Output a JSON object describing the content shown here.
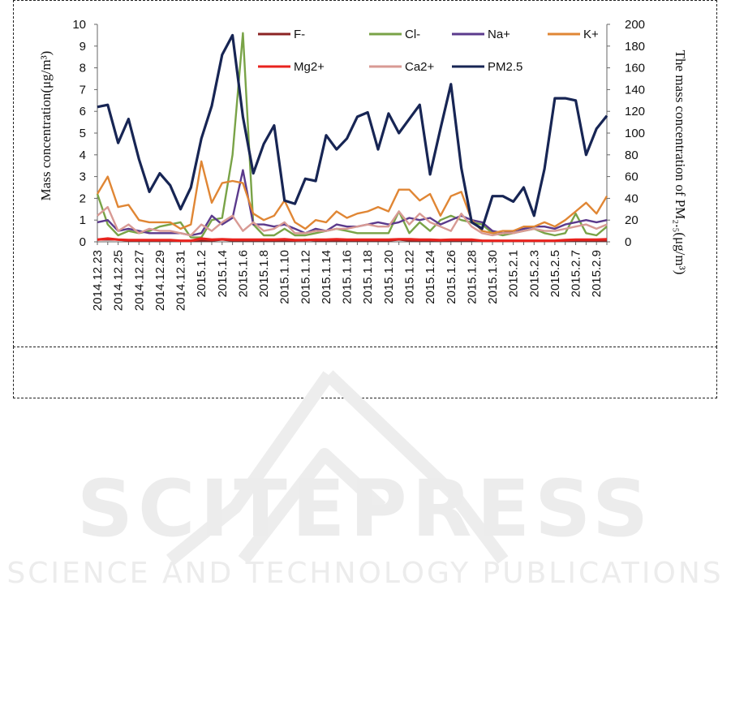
{
  "chart_data": {
    "type": "line",
    "ylabel_left": "Mass concentration(μg/m³)",
    "ylabel_right": "The mass concentration of PM₂.₅(μg/m³)",
    "ylim_left": [
      0,
      10
    ],
    "ylim_right": [
      0,
      200
    ],
    "yticks_left": [
      "0",
      "1",
      "2",
      "3",
      "4",
      "5",
      "6",
      "7",
      "8",
      "9",
      "10"
    ],
    "yticks_right": [
      "0",
      "20",
      "40",
      "60",
      "80",
      "100",
      "120",
      "140",
      "160",
      "180",
      "200"
    ],
    "x_tick_labels": [
      "2014.12.23",
      "2014.12.25",
      "2014.12.27",
      "2014.12.29",
      "2014.12.31",
      "2015.1.2",
      "2015.1.4",
      "2015.1.6",
      "2015.1.8",
      "2015.1.10",
      "2015.1.12",
      "2015.1.14",
      "2015.1.16",
      "2015.1.18",
      "2015.1.20",
      "2015.1.22",
      "2015.1.24",
      "2015.1.26",
      "2015.1.28",
      "2015.1.30",
      "2015.2.1",
      "2015.2.3",
      "2015.2.5",
      "2015.2.7",
      "2015.2.9"
    ],
    "x_count": 50,
    "legend_position": "top",
    "series": [
      {
        "name": "F-",
        "color": "#8b2323",
        "axis": "left",
        "values": [
          0.1,
          0.1,
          0.1,
          0.05,
          0.05,
          0.05,
          0.05,
          0.05,
          0.05,
          0.05,
          0.05,
          0.05,
          0.1,
          0.05,
          0.05,
          0.05,
          0.05,
          0.05,
          0.05,
          0.05,
          0.1,
          0.05,
          0.05,
          0.05,
          0.05,
          0.05,
          0.05,
          0.05,
          0.05,
          0.1,
          0.05,
          0.05,
          0.05,
          0.05,
          0.05,
          0.05,
          0.05,
          0.05,
          0.05,
          0.05,
          0.05,
          0.05,
          0.05,
          0.05,
          0.05,
          0.05,
          0.05,
          0.05,
          0.05,
          0.05
        ]
      },
      {
        "name": "Cl-",
        "color": "#79a347",
        "axis": "left",
        "values": [
          2.2,
          0.8,
          0.3,
          0.5,
          0.4,
          0.5,
          0.7,
          0.8,
          0.9,
          0.2,
          0.2,
          1.0,
          1.1,
          4.0,
          9.6,
          0.8,
          0.3,
          0.3,
          0.6,
          0.3,
          0.3,
          0.4,
          0.5,
          0.6,
          0.5,
          0.4,
          0.4,
          0.4,
          0.4,
          1.4,
          0.4,
          0.9,
          0.5,
          1.0,
          1.2,
          1.0,
          0.9,
          0.8,
          0.4,
          0.3,
          0.4,
          0.5,
          0.6,
          0.4,
          0.3,
          0.4,
          1.3,
          0.4,
          0.3,
          0.7
        ]
      },
      {
        "name": "Na+",
        "color": "#5b3a8c",
        "axis": "left",
        "values": [
          0.9,
          1.0,
          0.5,
          0.6,
          0.5,
          0.4,
          0.4,
          0.4,
          0.4,
          0.3,
          0.4,
          1.2,
          0.8,
          1.1,
          3.3,
          0.8,
          0.8,
          0.7,
          0.8,
          0.6,
          0.4,
          0.6,
          0.5,
          0.8,
          0.7,
          0.7,
          0.8,
          0.9,
          0.8,
          0.9,
          1.1,
          1.0,
          1.1,
          0.8,
          1.0,
          1.2,
          1.0,
          0.9,
          0.5,
          0.4,
          0.5,
          0.6,
          0.7,
          0.7,
          0.6,
          0.8,
          0.9,
          1.0,
          0.9,
          1.0
        ]
      },
      {
        "name": "K+",
        "color": "#e08634",
        "axis": "left",
        "values": [
          2.2,
          3.0,
          1.6,
          1.7,
          1.0,
          0.9,
          0.9,
          0.9,
          0.6,
          0.8,
          3.7,
          1.8,
          2.7,
          2.8,
          2.7,
          1.3,
          1.0,
          1.2,
          1.9,
          0.9,
          0.6,
          1.0,
          0.9,
          1.4,
          1.1,
          1.3,
          1.4,
          1.6,
          1.4,
          2.4,
          2.4,
          1.9,
          2.2,
          1.2,
          2.1,
          2.3,
          1.0,
          0.5,
          0.4,
          0.5,
          0.5,
          0.7,
          0.7,
          0.9,
          0.7,
          1.0,
          1.4,
          1.8,
          1.3,
          2.1
        ]
      },
      {
        "name": "Mg2+",
        "color": "#e8231e",
        "axis": "left",
        "values": [
          0.1,
          0.15,
          0.1,
          0.08,
          0.08,
          0.08,
          0.08,
          0.08,
          0.05,
          0.05,
          0.15,
          0.1,
          0.12,
          0.1,
          0.1,
          0.1,
          0.1,
          0.1,
          0.12,
          0.08,
          0.08,
          0.1,
          0.1,
          0.12,
          0.1,
          0.1,
          0.1,
          0.1,
          0.1,
          0.12,
          0.12,
          0.1,
          0.1,
          0.08,
          0.1,
          0.1,
          0.1,
          0.05,
          0.05,
          0.05,
          0.05,
          0.05,
          0.05,
          0.05,
          0.05,
          0.08,
          0.1,
          0.1,
          0.1,
          0.12
        ]
      },
      {
        "name": "Ca2+",
        "color": "#d89a94",
        "axis": "left",
        "values": [
          1.2,
          1.6,
          0.5,
          0.8,
          0.4,
          0.6,
          0.5,
          0.5,
          0.4,
          0.3,
          0.8,
          0.5,
          0.9,
          1.2,
          0.5,
          0.9,
          0.5,
          0.6,
          0.9,
          0.4,
          0.4,
          0.5,
          0.5,
          0.6,
          0.6,
          0.7,
          0.8,
          0.7,
          0.7,
          1.4,
          0.8,
          1.3,
          0.9,
          0.7,
          0.5,
          1.3,
          0.7,
          0.4,
          0.3,
          0.4,
          0.4,
          0.5,
          0.6,
          0.5,
          0.5,
          0.6,
          0.7,
          0.8,
          0.6,
          0.8
        ]
      },
      {
        "name": "PM2.5",
        "color": "#172554",
        "axis": "right",
        "values": [
          124,
          126,
          91,
          113,
          76,
          46,
          63,
          52,
          30,
          50,
          95,
          125,
          172,
          190,
          115,
          63,
          90,
          107,
          38,
          35,
          58,
          56,
          98,
          85,
          95,
          115,
          119,
          85,
          118,
          100,
          113,
          126,
          62,
          104,
          145,
          68,
          18,
          12,
          42,
          42,
          37,
          50,
          24,
          67,
          132,
          132,
          130,
          80,
          104,
          116
        ]
      }
    ]
  }
}
